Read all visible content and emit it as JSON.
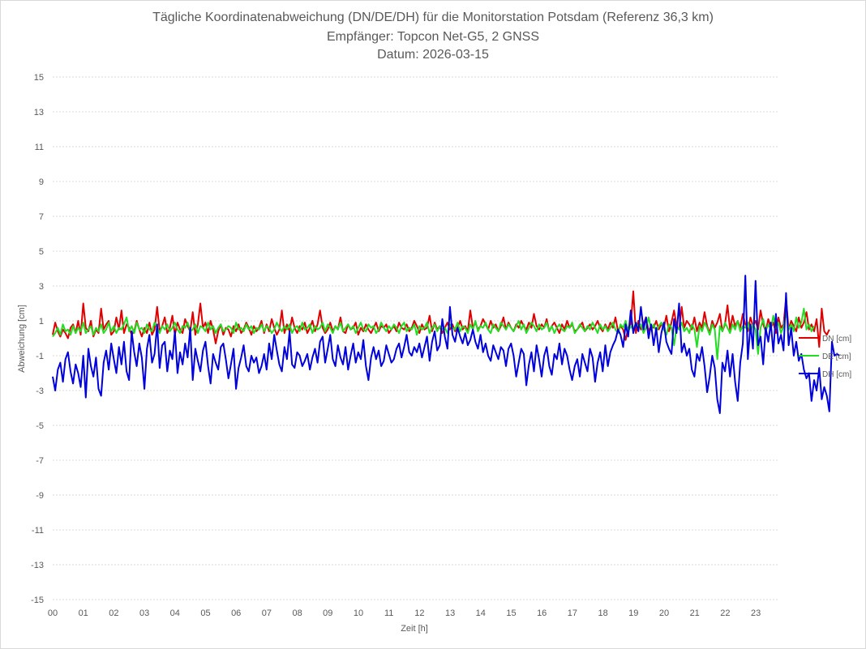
{
  "chart_data": {
    "type": "line",
    "title": "Tägliche Koordinatenabweichung (DN/DE/DH) für die Monitorstation Potsdam (Referenz 36,3 km)",
    "subtitle_1": "Empfänger: Topcon Net-G5, 2 GNSS",
    "subtitle_2": "Datum: 2026-03-15",
    "xlabel": "Zeit [h]",
    "ylabel": "Abweichung [cm]",
    "xlim": [
      0,
      24
    ],
    "ylim": [
      -15,
      15
    ],
    "y_ticks": [
      "15",
      "13",
      "11",
      "9",
      "7",
      "5",
      "3",
      "1",
      "-1",
      "-3",
      "-5",
      "-7",
      "-9",
      "-11",
      "-13",
      "-15"
    ],
    "x_ticks": [
      "00",
      "01",
      "02",
      "03",
      "04",
      "05",
      "06",
      "07",
      "08",
      "09",
      "10",
      "11",
      "12",
      "13",
      "14",
      "15",
      "16",
      "17",
      "18",
      "19",
      "20",
      "21",
      "22",
      "23"
    ],
    "grid": "horizontal dotted",
    "legend_position": "right",
    "x_step_hours": 0.0833,
    "series": [
      {
        "name": "DN [cm]",
        "color": "#e00000",
        "values": [
          0.2,
          0.9,
          0.4,
          0.1,
          0.5,
          0.3,
          0.0,
          0.6,
          0.8,
          0.3,
          1.0,
          0.2,
          2.0,
          0.6,
          0.4,
          1.0,
          0.1,
          0.5,
          0.3,
          1.7,
          0.5,
          0.8,
          1.0,
          0.2,
          0.4,
          1.2,
          0.5,
          1.6,
          0.3,
          0.8,
          0.6,
          0.2,
          0.4,
          1.0,
          0.5,
          0.1,
          0.6,
          0.3,
          0.9,
          0.2,
          0.5,
          1.8,
          0.4,
          0.7,
          1.2,
          0.3,
          0.6,
          1.3,
          0.2,
          0.9,
          0.5,
          0.3,
          1.1,
          0.7,
          0.4,
          1.5,
          0.2,
          0.8,
          2.0,
          0.6,
          0.9,
          0.3,
          1.0,
          0.5,
          -0.3,
          0.4,
          0.8,
          0.2,
          0.6,
          0.5,
          0.1,
          0.7,
          0.4,
          0.8,
          0.3,
          0.5,
          0.9,
          0.6,
          0.2,
          0.7,
          0.4,
          0.6,
          1.0,
          0.3,
          0.8,
          0.4,
          1.1,
          0.6,
          0.2,
          0.5,
          1.6,
          0.3,
          0.8,
          0.4,
          1.2,
          0.6,
          0.3,
          0.7,
          0.5,
          0.9,
          0.3,
          0.6,
          1.0,
          0.4,
          0.8,
          1.6,
          0.6,
          0.3,
          0.5,
          0.9,
          0.4,
          0.7,
          0.5,
          1.2,
          0.4,
          0.3,
          0.8,
          0.5,
          0.6,
          0.9,
          0.2,
          0.6,
          0.4,
          0.8,
          0.5,
          0.3,
          0.6,
          0.9,
          0.4,
          0.7,
          0.6,
          0.8,
          0.3,
          0.5,
          0.7,
          0.4,
          0.9,
          0.6,
          0.5,
          0.8,
          0.4,
          0.6,
          1.0,
          0.7,
          0.3,
          0.8,
          0.5,
          0.6,
          1.3,
          0.4,
          0.9,
          0.5,
          0.7,
          0.3,
          0.6,
          0.9,
          0.5,
          0.8,
          0.4,
          0.6,
          1.0,
          0.5,
          0.7,
          0.4,
          1.6,
          0.6,
          0.9,
          0.5,
          0.7,
          1.1,
          0.8,
          0.5,
          1.0,
          0.6,
          0.8,
          0.4,
          0.7,
          1.2,
          0.5,
          0.9,
          0.6,
          0.4,
          0.8,
          0.6,
          1.0,
          0.7,
          0.5,
          0.9,
          0.6,
          1.4,
          0.7,
          0.5,
          0.8,
          0.6,
          1.1,
          0.4,
          0.7,
          0.9,
          0.6,
          0.3,
          0.8,
          0.5,
          1.0,
          0.6,
          0.8,
          0.4,
          0.5,
          0.7,
          0.9,
          0.4,
          0.6,
          0.8,
          0.5,
          0.7,
          1.0,
          0.6,
          0.4,
          0.8,
          0.5,
          0.9,
          0.6,
          1.2,
          0.4,
          0.7,
          0.5,
          -0.1,
          0.6,
          0.8,
          2.7,
          0.3,
          1.0,
          0.5,
          0.8,
          1.2,
          0.4,
          0.7,
          0.6,
          1.0,
          0.5,
          0.8,
          0.6,
          1.3,
          0.4,
          0.9,
          1.6,
          0.7,
          0.5,
          1.8,
          0.6,
          1.0,
          0.8,
          0.5,
          1.2,
          0.4,
          0.9,
          0.6,
          1.5,
          0.7,
          0.3,
          1.0,
          0.6,
          0.9,
          1.4,
          0.4,
          0.8,
          1.9,
          0.5,
          1.3,
          0.7,
          1.0,
          0.6,
          1.4,
          0.8,
          0.4,
          1.2,
          0.7,
          1.0,
          0.5,
          1.6,
          0.8,
          0.4,
          1.1,
          0.6,
          0.9,
          0.3,
          1.2,
          0.6,
          0.8,
          2.3,
          0.5,
          1.0,
          0.7,
          0.4,
          1.2,
          0.6,
          0.9,
          1.5,
          0.5,
          0.8,
          0.4,
          1.1,
          -0.5,
          1.7,
          0.4,
          0.2,
          0.5
        ]
      },
      {
        "name": "DE [cm]",
        "color": "#22dd22",
        "values": [
          0.1,
          0.3,
          0.6,
          0.2,
          0.8,
          0.4,
          0.5,
          0.2,
          0.7,
          0.3,
          0.6,
          0.4,
          0.9,
          0.3,
          0.5,
          0.7,
          0.2,
          0.6,
          0.4,
          0.8,
          0.3,
          0.5,
          0.9,
          0.4,
          0.7,
          0.3,
          0.6,
          0.5,
          0.8,
          1.2,
          0.4,
          0.7,
          0.3,
          0.9,
          0.5,
          0.6,
          0.3,
          0.8,
          0.5,
          0.4,
          0.9,
          0.6,
          0.3,
          0.7,
          0.5,
          0.8,
          0.4,
          0.6,
          0.9,
          0.5,
          0.3,
          0.7,
          0.6,
          0.9,
          0.4,
          0.5,
          0.8,
          0.3,
          0.7,
          0.6,
          0.4,
          0.9,
          0.5,
          0.7,
          0.3,
          0.6,
          0.8,
          0.4,
          0.5,
          0.7,
          0.6,
          0.3,
          0.9,
          0.5,
          0.6,
          0.4,
          0.8,
          0.5,
          0.7,
          0.3,
          0.6,
          0.5,
          0.8,
          0.4,
          0.7,
          0.6,
          0.3,
          0.5,
          0.9,
          0.6,
          0.4,
          0.7,
          0.5,
          0.8,
          0.3,
          0.6,
          0.7,
          0.4,
          0.9,
          0.5,
          0.6,
          0.8,
          0.3,
          0.7,
          0.5,
          0.6,
          0.9,
          0.4,
          0.8,
          0.6,
          0.3,
          0.7,
          0.5,
          0.9,
          0.4,
          0.6,
          0.8,
          0.5,
          0.7,
          0.3,
          0.6,
          0.9,
          0.5,
          0.4,
          0.8,
          0.6,
          0.7,
          0.3,
          0.5,
          0.9,
          0.6,
          0.4,
          0.7,
          0.5,
          0.8,
          0.6,
          0.3,
          0.7,
          0.9,
          0.4,
          0.6,
          0.5,
          0.8,
          0.2,
          0.7,
          0.5,
          0.6,
          0.9,
          0.3,
          0.6,
          0.8,
          0.4,
          0.7,
          0.5,
          0.6,
          0.3,
          0.8,
          0.6,
          0.5,
          0.9,
          0.4,
          0.7,
          0.6,
          0.3,
          0.8,
          0.5,
          1.0,
          0.4,
          0.7,
          0.6,
          0.9,
          0.5,
          0.3,
          0.8,
          0.6,
          0.4,
          0.9,
          0.7,
          0.5,
          0.8,
          0.6,
          0.4,
          0.7,
          1.0,
          0.5,
          0.8,
          0.3,
          0.6,
          0.9,
          0.7,
          0.4,
          0.8,
          0.5,
          0.6,
          0.9,
          0.4,
          0.7,
          0.3,
          0.6,
          0.8,
          0.5,
          0.4,
          0.7,
          0.6,
          0.9,
          0.3,
          0.5,
          0.8,
          0.6,
          0.4,
          0.7,
          0.5,
          0.9,
          0.6,
          0.3,
          0.8,
          0.5,
          0.7,
          0.4,
          0.6,
          0.9,
          0.5,
          0.3,
          0.8,
          0.6,
          1.0,
          0.4,
          0.7,
          0.5,
          0.9,
          0.6,
          0.8,
          0.3,
          0.6,
          1.2,
          0.5,
          0.8,
          0.4,
          0.7,
          0.9,
          0.5,
          0.2,
          0.8,
          0.6,
          -0.4,
          0.7,
          0.5,
          0.9,
          0.4,
          0.6,
          0.3,
          0.8,
          0.5,
          -0.5,
          0.7,
          0.4,
          0.9,
          0.6,
          0.2,
          0.8,
          0.5,
          -1.2,
          0.7,
          0.4,
          0.9,
          0.6,
          0.3,
          0.8,
          0.5,
          1.0,
          0.4,
          0.7,
          0.6,
          0.9,
          0.3,
          0.8,
          0.5,
          -0.9,
          0.6,
          1.1,
          0.4,
          0.8,
          0.5,
          1.3,
          0.6,
          0.9,
          0.3,
          0.7,
          1.5,
          0.5,
          0.8,
          0.4,
          1.2,
          0.6,
          0.9,
          1.7,
          0.5,
          0.8,
          0.4,
          0.7
        ]
      },
      {
        "name": "DH [cm]",
        "color": "#0000dd",
        "values": [
          -2.2,
          -3.0,
          -1.8,
          -1.4,
          -2.5,
          -1.2,
          -0.8,
          -1.9,
          -2.6,
          -1.5,
          -2.0,
          -2.8,
          -1.0,
          -3.4,
          -0.6,
          -1.6,
          -2.2,
          -1.1,
          -2.9,
          -3.3,
          -1.4,
          -0.7,
          -1.8,
          -0.3,
          -1.2,
          -2.0,
          -0.5,
          -1.5,
          -0.2,
          -1.9,
          -2.4,
          0.4,
          -0.8,
          -1.6,
          -0.3,
          -1.1,
          -2.9,
          -0.6,
          0.2,
          -1.4,
          -0.9,
          0.8,
          -1.7,
          -0.4,
          -0.2,
          -1.9,
          -0.7,
          -1.2,
          0.4,
          -2.0,
          -0.8,
          -1.5,
          -0.3,
          -1.1,
          0.6,
          -2.4,
          -0.6,
          -1.3,
          -1.9,
          -0.7,
          -0.2,
          -1.6,
          -2.6,
          -0.9,
          -1.4,
          -1.8,
          -0.5,
          -0.3,
          -1.2,
          -2.3,
          -1.5,
          -0.6,
          -2.9,
          -1.7,
          -1.1,
          -0.4,
          -1.6,
          -1.9,
          -1.0,
          -1.4,
          -1.1,
          -2.0,
          -1.6,
          -0.9,
          -1.8,
          -0.3,
          -1.2,
          0.2,
          -0.7,
          -1.5,
          -1.9,
          -0.5,
          -1.2,
          0.4,
          -1.5,
          -1.7,
          -0.8,
          -1.0,
          -1.6,
          -1.3,
          -0.9,
          -1.8,
          -1.1,
          -0.6,
          -1.4,
          -0.2,
          0.1,
          -1.4,
          -0.6,
          0.2,
          -1.2,
          -1.6,
          -0.4,
          -1.1,
          -1.5,
          -0.5,
          -1.8,
          -1.0,
          -0.3,
          -1.4,
          -0.8,
          -1.2,
          -0.1,
          -1.6,
          -2.4,
          -1.1,
          -0.5,
          -1.2,
          -0.7,
          -1.6,
          -1.3,
          -0.4,
          -0.9,
          -1.4,
          -1.2,
          -0.6,
          -0.3,
          -1.1,
          -0.5,
          0.2,
          -0.8,
          -1.0,
          -0.5,
          -0.8,
          -0.3,
          -1.1,
          -0.5,
          0.1,
          -1.3,
          -0.2,
          0.4,
          -0.7,
          -0.4,
          1.1,
          0.1,
          -0.6,
          1.8,
          0.2,
          -0.2,
          0.6,
          0.1,
          -0.3,
          0.3,
          -0.4,
          -0.1,
          0.5,
          -0.2,
          -0.6,
          0.2,
          -0.8,
          -0.3,
          -1.0,
          -1.3,
          -0.4,
          -0.8,
          -1.2,
          -0.5,
          -0.7,
          -1.6,
          -0.6,
          -0.3,
          -1.0,
          -2.2,
          -1.4,
          -0.6,
          -0.9,
          -2.7,
          -1.5,
          -0.8,
          -1.9,
          -0.4,
          -1.2,
          -2.2,
          -1.0,
          -0.5,
          -1.6,
          -2.1,
          -0.9,
          -1.2,
          -0.3,
          -1.5,
          -0.6,
          -1.0,
          -1.8,
          -2.4,
          -1.6,
          -1.2,
          -2.2,
          -0.9,
          -1.4,
          -1.9,
          -0.6,
          -1.1,
          -2.5,
          -1.4,
          -0.8,
          -1.9,
          -0.4,
          -1.6,
          -0.8,
          -0.4,
          -0.1,
          0.5,
          0.2,
          -0.5,
          0.8,
          0.1,
          1.6,
          0.3,
          0.9,
          0.4,
          1.8,
          0.5,
          1.2,
          0.0,
          0.8,
          -0.4,
          0.6,
          -0.8,
          0.3,
          0.9,
          -0.2,
          -0.6,
          -0.9,
          1.1,
          0.3,
          2.0,
          -0.8,
          -0.3,
          -1.0,
          -0.6,
          -1.8,
          -2.2,
          -0.9,
          -1.3,
          -0.5,
          -1.6,
          -3.1,
          -2.2,
          -1.0,
          -1.7,
          -3.5,
          -4.3,
          -1.4,
          -1.9,
          -0.7,
          -2.2,
          -0.9,
          -2.5,
          -3.6,
          -1.4,
          -0.3,
          3.6,
          -1.2,
          0.8,
          -0.6,
          3.3,
          -0.4,
          0.1,
          -1.5,
          0.6,
          -0.2,
          0.9,
          -0.8,
          1.4,
          -0.3,
          0.2,
          -0.7,
          2.6,
          -0.4,
          0.6,
          -1.0,
          -0.2,
          -1.3,
          -0.9,
          -1.8,
          -2.3,
          -2.0,
          -3.6,
          -2.4,
          -3.0,
          -1.7,
          -3.5,
          -2.8,
          -3.3,
          -4.2,
          -0.2,
          -1.0,
          -0.9,
          -1.0
        ]
      }
    ]
  }
}
